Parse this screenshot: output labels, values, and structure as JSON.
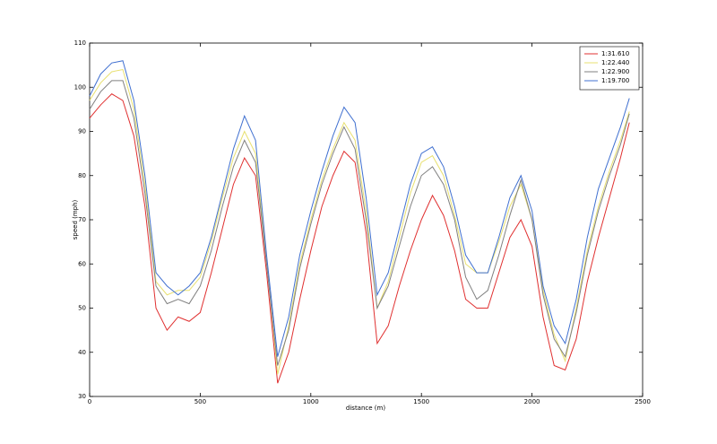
{
  "chart_data": {
    "type": "line",
    "xlabel": "distance (m)",
    "ylabel": "speed (mph)",
    "x": [
      0,
      50,
      100,
      150,
      200,
      250,
      300,
      350,
      400,
      450,
      500,
      550,
      600,
      650,
      700,
      750,
      800,
      850,
      900,
      950,
      1000,
      1050,
      1100,
      1150,
      1200,
      1250,
      1300,
      1350,
      1400,
      1450,
      1500,
      1550,
      1600,
      1650,
      1700,
      1750,
      1800,
      1850,
      1900,
      1950,
      2000,
      2050,
      2100,
      2150,
      2200,
      2250,
      2300,
      2350,
      2400,
      2440
    ],
    "series": [
      {
        "name": "1:31.610",
        "color": "#e03030",
        "values": [
          93,
          96,
          98.5,
          97,
          89,
          73,
          50,
          45,
          48,
          47,
          49,
          58,
          68,
          78,
          84,
          80,
          58,
          33,
          40,
          52,
          63,
          73,
          80,
          85.5,
          83,
          67,
          42,
          46,
          55,
          63,
          70,
          75.5,
          71,
          63,
          52,
          50,
          50,
          58,
          66,
          70,
          64,
          48,
          37,
          36,
          43,
          56,
          66,
          75,
          84,
          92
        ]
      },
      {
        "name": "1:22.440",
        "color": "#e8e070",
        "values": [
          97,
          101,
          103.5,
          104,
          95,
          78,
          56,
          53,
          54,
          54,
          57,
          65,
          75,
          84,
          90,
          85,
          61,
          35,
          46,
          60,
          70,
          79,
          86,
          92,
          88,
          72,
          50,
          56,
          66,
          76,
          83,
          84.5,
          80,
          71,
          60,
          58,
          58,
          65,
          73,
          78,
          70,
          54,
          44,
          38,
          50,
          63,
          73,
          81,
          88,
          94.5
        ]
      },
      {
        "name": "1:22.900",
        "color": "#808080",
        "values": [
          95,
          99,
          101.5,
          101.5,
          93,
          76,
          55,
          51,
          52,
          51,
          55,
          63,
          73,
          82,
          88,
          83,
          60,
          37,
          45,
          59,
          69,
          78,
          85,
          91,
          86,
          70,
          50,
          55,
          64,
          73,
          80,
          82,
          78,
          70,
          57,
          52,
          54,
          62,
          71,
          79,
          70,
          53,
          43,
          39,
          49,
          62,
          72,
          80,
          87,
          94
        ]
      },
      {
        "name": "1:19.700",
        "color": "#4070d0",
        "values": [
          98,
          103,
          105.5,
          106,
          97,
          80,
          58,
          55,
          53,
          55,
          58,
          66,
          76,
          86,
          93.5,
          88,
          62,
          39,
          48,
          62,
          72,
          81,
          89,
          95.5,
          92,
          75,
          53,
          58,
          68,
          78,
          85,
          86.5,
          82,
          73,
          62,
          58,
          58,
          66,
          75,
          80,
          72,
          55,
          46,
          42,
          52,
          66,
          77,
          84,
          91,
          97.5
        ]
      }
    ],
    "xlim": [
      0,
      2500
    ],
    "xticks": [
      0,
      500,
      1000,
      1500,
      2000,
      2500
    ],
    "ylim": [
      30,
      110
    ],
    "yticks": [
      30,
      40,
      50,
      60,
      70,
      80,
      90,
      100,
      110
    ],
    "legend": "upper right"
  }
}
